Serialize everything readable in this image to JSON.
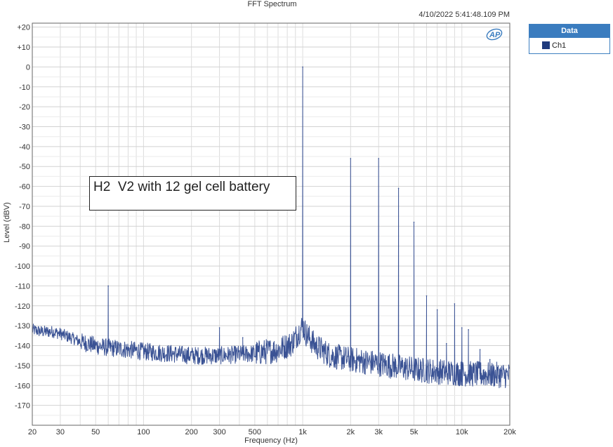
{
  "chart_data": {
    "type": "line",
    "title": "FFT Spectrum",
    "timestamp": "4/10/2022 5:41:48.109 PM",
    "xlabel": "Frequency (Hz)",
    "ylabel": "Level (dBV)",
    "x_scale": "log",
    "xlim": [
      20,
      20000
    ],
    "ylim": [
      -180,
      22
    ],
    "grid": true,
    "x_ticks": [
      {
        "value": 20,
        "label": "20"
      },
      {
        "value": 30,
        "label": "30"
      },
      {
        "value": 50,
        "label": "50"
      },
      {
        "value": 100,
        "label": "100"
      },
      {
        "value": 200,
        "label": "200"
      },
      {
        "value": 300,
        "label": "300"
      },
      {
        "value": 500,
        "label": "500"
      },
      {
        "value": 1000,
        "label": "1k"
      },
      {
        "value": 2000,
        "label": "2k"
      },
      {
        "value": 3000,
        "label": "3k"
      },
      {
        "value": 5000,
        "label": "5k"
      },
      {
        "value": 10000,
        "label": "10k"
      },
      {
        "value": 20000,
        "label": "20k"
      }
    ],
    "y_ticks": [
      {
        "value": 20,
        "label": "+20"
      },
      {
        "value": 10,
        "label": "+10"
      },
      {
        "value": 0,
        "label": "0"
      },
      {
        "value": -10,
        "label": "-10"
      },
      {
        "value": -20,
        "label": "-20"
      },
      {
        "value": -30,
        "label": "-30"
      },
      {
        "value": -40,
        "label": "-40"
      },
      {
        "value": -50,
        "label": "-50"
      },
      {
        "value": -60,
        "label": "-60"
      },
      {
        "value": -70,
        "label": "-70"
      },
      {
        "value": -80,
        "label": "-80"
      },
      {
        "value": -90,
        "label": "-90"
      },
      {
        "value": -100,
        "label": "-100"
      },
      {
        "value": -110,
        "label": "-110"
      },
      {
        "value": -120,
        "label": "-120"
      },
      {
        "value": -130,
        "label": "-130"
      },
      {
        "value": -140,
        "label": "-140"
      },
      {
        "value": -150,
        "label": "-150"
      },
      {
        "value": -160,
        "label": "-160"
      },
      {
        "value": -170,
        "label": "-170"
      }
    ],
    "legend": {
      "header": "Data",
      "position": "right",
      "entries": [
        {
          "name": "Ch1",
          "color": "#1f3b7d"
        }
      ]
    },
    "annotation": "H2  V2 with 12 gel cell battery",
    "series": [
      {
        "name": "Ch1",
        "color": "#3a5294",
        "noise_floor": [
          [
            20,
            -132
          ],
          [
            23,
            -133
          ],
          [
            27,
            -133
          ],
          [
            30,
            -134
          ],
          [
            35,
            -136
          ],
          [
            40,
            -138
          ],
          [
            50,
            -140
          ],
          [
            60,
            -141
          ],
          [
            80,
            -142
          ],
          [
            100,
            -143
          ],
          [
            150,
            -144
          ],
          [
            200,
            -145
          ],
          [
            300,
            -145
          ],
          [
            500,
            -144
          ],
          [
            700,
            -142
          ],
          [
            850,
            -139
          ],
          [
            950,
            -133
          ],
          [
            1000,
            -130
          ],
          [
            1050,
            -134
          ],
          [
            1200,
            -140
          ],
          [
            1500,
            -145
          ],
          [
            2000,
            -147
          ],
          [
            3000,
            -149
          ],
          [
            5000,
            -152
          ],
          [
            10000,
            -154
          ],
          [
            20000,
            -155
          ]
        ],
        "peaks": [
          {
            "x": 60,
            "y": -110
          },
          {
            "x": 300,
            "y": -131
          },
          {
            "x": 420,
            "y": -136
          },
          {
            "x": 1000,
            "y": 0
          },
          {
            "x": 2000,
            "y": -46
          },
          {
            "x": 3000,
            "y": -46
          },
          {
            "x": 4000,
            "y": -61
          },
          {
            "x": 5000,
            "y": -78
          },
          {
            "x": 6000,
            "y": -115
          },
          {
            "x": 7000,
            "y": -122
          },
          {
            "x": 8000,
            "y": -139
          },
          {
            "x": 9000,
            "y": -119
          },
          {
            "x": 10000,
            "y": -131
          },
          {
            "x": 11000,
            "y": -132
          },
          {
            "x": 13000,
            "y": -142
          },
          {
            "x": 15000,
            "y": -147
          }
        ]
      }
    ]
  }
}
